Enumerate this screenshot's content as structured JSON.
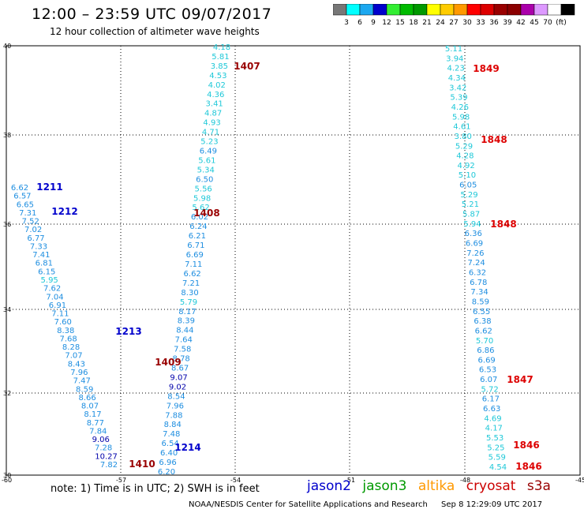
{
  "header": {
    "title": "12:00 – 23:59 UTC 09/07/2017",
    "subtitle": "12 hour collection of altimeter wave heights"
  },
  "legend": {
    "colors": [
      "#777777",
      "#00ffff",
      "#1ca8f0",
      "#0000cc",
      "#33ee33",
      "#00bb00",
      "#009900",
      "#ffff00",
      "#ffcc00",
      "#ff9900",
      "#ff0000",
      "#dd0000",
      "#990000",
      "#8b0000",
      "#aa00aa",
      "#dd99ff",
      "#ffffff",
      "#000000"
    ],
    "labels": [
      "3",
      "6",
      "9",
      "12",
      "15",
      "18",
      "21",
      "24",
      "27",
      "30",
      "33",
      "36",
      "39",
      "42",
      "45",
      "70",
      "(ft)"
    ]
  },
  "axes": {
    "x_ticks": [
      "-60",
      "-57",
      "-54",
      "-51",
      "-48",
      "-45"
    ],
    "y_ticks": [
      "40",
      "38",
      "36",
      "34",
      "32",
      "30"
    ]
  },
  "colors": {
    "jason2": "#0000cc",
    "jason3": "#009900",
    "altika": "#ff9900",
    "cryosat": "#cc0000",
    "s3a": "#990000",
    "value_cyan": "#1ec8d8",
    "value_blue": "#1e8ee0",
    "value_navy": "#0000aa"
  },
  "passes": [
    {
      "label": "1407",
      "color": "#990000"
    },
    {
      "label": "1408",
      "color": "#990000"
    },
    {
      "label": "1409",
      "color": "#990000"
    },
    {
      "label": "1410",
      "color": "#990000"
    },
    {
      "label": "1211",
      "color": "#0000cc"
    },
    {
      "label": "1212",
      "color": "#0000cc"
    },
    {
      "label": "1213",
      "color": "#0000cc"
    },
    {
      "label": "1214",
      "color": "#0000cc"
    },
    {
      "label": "1849",
      "color": "#dd0000"
    },
    {
      "label": "1848",
      "color": "#dd0000"
    },
    {
      "label": "1848",
      "color": "#dd0000"
    },
    {
      "label": "1847",
      "color": "#dd0000"
    },
    {
      "label": "1846",
      "color": "#dd0000"
    },
    {
      "label": "1846",
      "color": "#dd0000"
    }
  ],
  "track_s3a": [
    "4.18",
    "5.81",
    "3.85",
    "4.53",
    "4.02",
    "4.36",
    "3.41",
    "4.87",
    "4.93",
    "4.71",
    "5.23",
    "6.49",
    "5.61",
    "5.34",
    "6.50",
    "5.56",
    "5.98",
    "5.62",
    "6.02",
    "6.24",
    "6.21",
    "6.71",
    "6.69",
    "7.11",
    "6.62",
    "7.21",
    "8.30",
    "5.79",
    "8.17",
    "8.39",
    "8.44",
    "7.64",
    "7.58",
    "8.78",
    "8.67",
    "9.07",
    "9.02",
    "8.54",
    "7.96",
    "7.88",
    "8.84",
    "7.48",
    "6.54",
    "6.40",
    "6.96",
    "6.20"
  ],
  "track_jason2": [
    "6.62",
    "6.57",
    "6.65",
    "7.31",
    "7.52",
    "7.02",
    "6.77",
    "7.33",
    "7.41",
    "6.81",
    "6.15",
    "5.95",
    "7.62",
    "7.04",
    "6.91",
    "7.11",
    "7.60",
    "8.38",
    "7.68",
    "8.28",
    "7.07",
    "8.43",
    "7.96",
    "7.47",
    "8.59",
    "8.66",
    "8.07",
    "8.17",
    "8.77",
    "7.84",
    "9.06",
    "7.28",
    "10.27",
    "7.82"
  ],
  "track_cryosat": [
    "5.11",
    "3.94",
    "4.23",
    "4.34",
    "3.42",
    "5.39",
    "4.26",
    "5.98",
    "4.61",
    "3.80",
    "5.29",
    "4.28",
    "4.92",
    "5.10",
    "6.05",
    "5.29",
    "5.21",
    "5.87",
    "5.94",
    "6.36",
    "6.69",
    "7.26",
    "7.24",
    "6.32",
    "6.78",
    "7.34",
    "8.59",
    "6.55",
    "6.38",
    "6.62",
    "5.70",
    "6.86",
    "6.69",
    "6.53",
    "6.07",
    "5.72",
    "6.17",
    "6.63",
    "4.69",
    "4.17",
    "5.53",
    "5.25",
    "5.59",
    "4.54"
  ],
  "footer": {
    "note": "note:  1) Time is in UTC;  2) SWH is in feet",
    "satellites": [
      {
        "name": "jason2",
        "color": "#0000cc"
      },
      {
        "name": "jason3",
        "color": "#009900"
      },
      {
        "name": "altika",
        "color": "#ff9900"
      },
      {
        "name": "cryosat",
        "color": "#cc0000"
      },
      {
        "name": "s3a",
        "color": "#990000"
      }
    ],
    "credit": "NOAA/NESDIS Center for Satellite Applications and Research",
    "timestamp": "Sep  8 12:29:09 UTC 2017"
  }
}
